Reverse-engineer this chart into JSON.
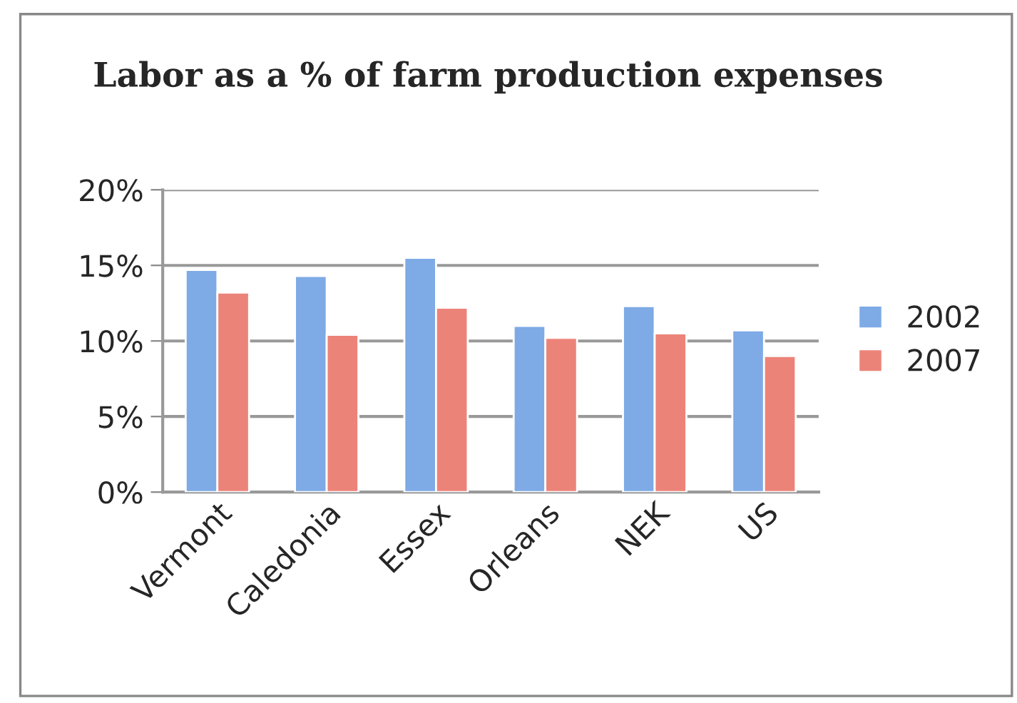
{
  "chart_data": {
    "type": "bar",
    "title": "Labor as a % of farm production expenses",
    "categories": [
      "Vermont",
      "Caledonia",
      "Essex",
      "Orleans",
      "NEK",
      "US"
    ],
    "series": [
      {
        "name": "2002",
        "color": "#7eaae6",
        "values": [
          14.7,
          14.3,
          15.5,
          11.0,
          12.3,
          10.7
        ]
      },
      {
        "name": "2007",
        "color": "#ec8379",
        "values": [
          13.2,
          10.4,
          12.2,
          10.2,
          10.5,
          9.0
        ]
      }
    ],
    "ylim": [
      0,
      20
    ],
    "yticks": [
      {
        "value": 0,
        "label": "0%"
      },
      {
        "value": 5,
        "label": "5%"
      },
      {
        "value": 10,
        "label": "10%"
      },
      {
        "value": 15,
        "label": "15%"
      },
      {
        "value": 20,
        "label": "20%"
      }
    ],
    "grid": "y",
    "legend": "right"
  }
}
